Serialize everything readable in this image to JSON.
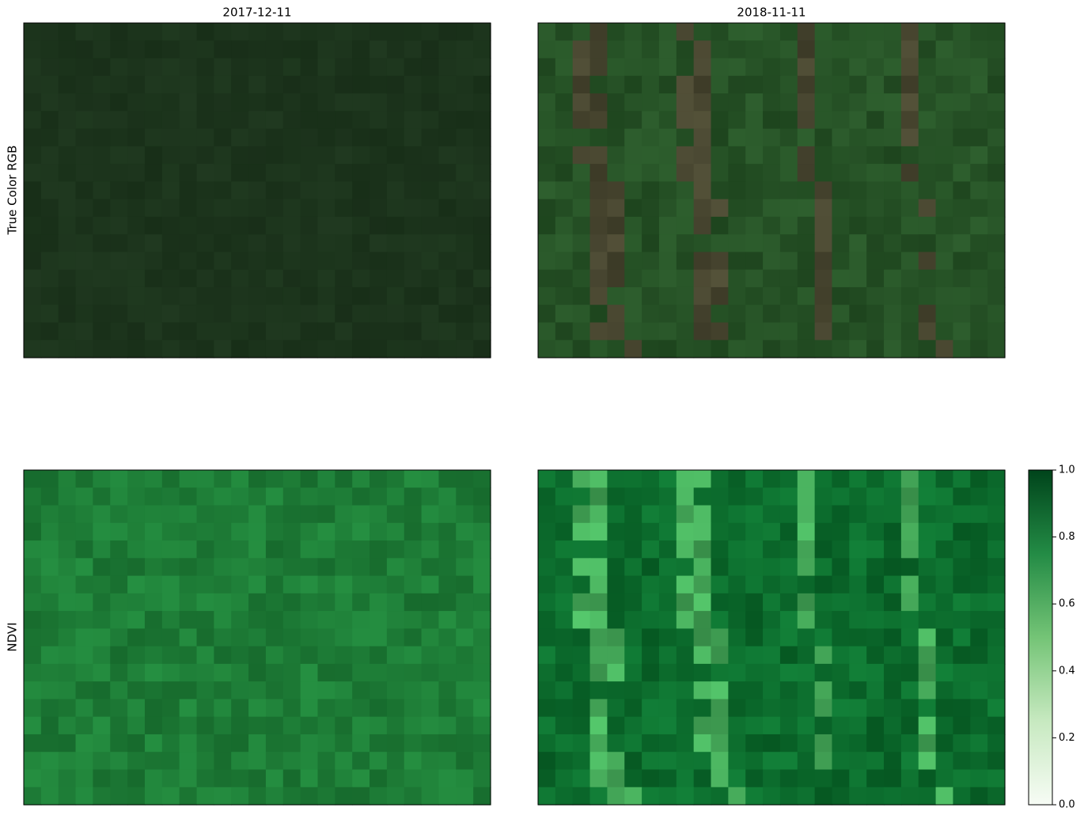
{
  "chart_data": {
    "type": "image-grid",
    "columns": [
      "2017-12-11",
      "2018-11-11"
    ],
    "rows": [
      "True Color RGB",
      "NDVI"
    ],
    "colorbar": {
      "ylim": [
        0,
        1
      ],
      "yticks": [
        {
          "value": 0,
          "label": "0.0"
        },
        0.2,
        0.4,
        0.6,
        0.8,
        {
          "value": 1,
          "label": "1.0"
        }
      ]
    }
  }
}
